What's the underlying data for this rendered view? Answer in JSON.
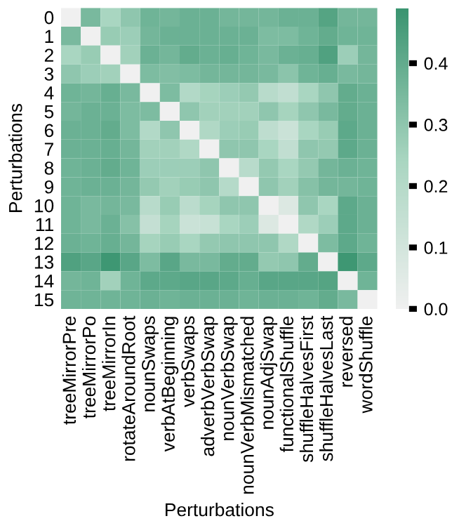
{
  "chart_data": {
    "type": "heatmap",
    "xlabel": "Perturbations",
    "ylabel": "Perturbations",
    "categories": [
      "treeMirrorPre",
      "treeMirrorPo",
      "treeMirrorIn",
      "rotateAroundRoot",
      "nounSwaps",
      "verbAtBeginning",
      "verbSwaps",
      "adverbVerbSwap",
      "nounVerbSwap",
      "nounVerbMismatched",
      "nounAdjSwap",
      "functionalShuffle",
      "shuffleHalvesFirst",
      "shuffleHalvesLast",
      "reversed",
      "wordShuffle"
    ],
    "y_categories": [
      "0",
      "1",
      "2",
      "3",
      "4",
      "5",
      "6",
      "7",
      "8",
      "9",
      "10",
      "11",
      "12",
      "13",
      "14",
      "15"
    ],
    "cells": [
      [
        0,
        0.35,
        0.24,
        0.3,
        0.37,
        0.36,
        0.38,
        0.38,
        0.36,
        0.36,
        0.36,
        0.38,
        0.38,
        0.43,
        0.36,
        0.36
      ],
      [
        0.35,
        0,
        0.28,
        0.27,
        0.36,
        0.38,
        0.38,
        0.38,
        0.38,
        0.38,
        0.34,
        0.34,
        0.37,
        0.4,
        0.37,
        0.37
      ],
      [
        0.24,
        0.28,
        0,
        0.26,
        0.38,
        0.36,
        0.4,
        0.38,
        0.39,
        0.37,
        0.35,
        0.38,
        0.39,
        0.44,
        0.27,
        0.36
      ],
      [
        0.3,
        0.27,
        0.26,
        0,
        0.34,
        0.33,
        0.34,
        0.36,
        0.36,
        0.36,
        0.35,
        0.31,
        0.37,
        0.39,
        0.35,
        0.36
      ],
      [
        0.37,
        0.36,
        0.39,
        0.35,
        0,
        0.34,
        0.21,
        0.25,
        0.27,
        0.29,
        0.19,
        0.16,
        0.24,
        0.3,
        0.4,
        0.38
      ],
      [
        0.36,
        0.38,
        0.38,
        0.34,
        0.34,
        0,
        0.3,
        0.26,
        0.26,
        0.26,
        0.3,
        0.25,
        0.3,
        0.35,
        0.4,
        0.38
      ],
      [
        0.38,
        0.38,
        0.4,
        0.34,
        0.21,
        0.3,
        0,
        0.22,
        0.27,
        0.28,
        0.17,
        0.13,
        0.24,
        0.28,
        0.41,
        0.38
      ],
      [
        0.38,
        0.38,
        0.39,
        0.36,
        0.26,
        0.26,
        0.22,
        0,
        0.3,
        0.3,
        0.24,
        0.16,
        0.3,
        0.29,
        0.41,
        0.38
      ],
      [
        0.37,
        0.38,
        0.4,
        0.37,
        0.27,
        0.27,
        0.27,
        0.3,
        0,
        0.19,
        0.29,
        0.24,
        0.29,
        0.36,
        0.38,
        0.37
      ],
      [
        0.37,
        0.38,
        0.38,
        0.36,
        0.29,
        0.26,
        0.28,
        0.3,
        0.2,
        0,
        0.3,
        0.26,
        0.32,
        0.36,
        0.36,
        0.37
      ],
      [
        0.37,
        0.35,
        0.36,
        0.35,
        0.19,
        0.28,
        0.18,
        0.25,
        0.3,
        0.3,
        0,
        0.07,
        0.3,
        0.24,
        0.41,
        0.38
      ],
      [
        0.37,
        0.35,
        0.38,
        0.32,
        0.15,
        0.25,
        0.13,
        0.14,
        0.24,
        0.27,
        0.07,
        0,
        0.22,
        0.27,
        0.41,
        0.38
      ],
      [
        0.38,
        0.37,
        0.39,
        0.36,
        0.25,
        0.28,
        0.24,
        0.29,
        0.3,
        0.3,
        0.3,
        0.22,
        0,
        0.34,
        0.41,
        0.37
      ],
      [
        0.44,
        0.42,
        0.48,
        0.42,
        0.34,
        0.42,
        0.35,
        0.35,
        0.4,
        0.4,
        0.29,
        0.3,
        0.4,
        0,
        0.48,
        0.41
      ],
      [
        0.36,
        0.37,
        0.26,
        0.37,
        0.41,
        0.41,
        0.42,
        0.42,
        0.41,
        0.39,
        0.42,
        0.42,
        0.42,
        0.43,
        0,
        0.37
      ],
      [
        0.37,
        0.37,
        0.37,
        0.37,
        0.38,
        0.37,
        0.38,
        0.38,
        0.38,
        0.37,
        0.38,
        0.38,
        0.37,
        0.4,
        0.35,
        0
      ]
    ],
    "clim": [
      0,
      0.49
    ],
    "cticks": [
      {
        "value": 0,
        "label": "0.0"
      },
      0.1,
      0.2,
      0.3,
      0.4
    ]
  }
}
